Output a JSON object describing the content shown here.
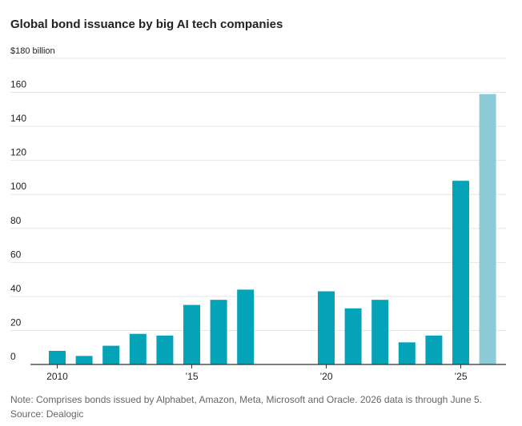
{
  "title": "Global bond issuance by big AI tech companies",
  "note": "Note: Comprises bonds issued by Alphabet, Amazon, Meta, Microsoft and Oracle. 2026 data is through June 5.",
  "source": "Source: Dealogic",
  "colors": {
    "bar": "#05a3b8",
    "bar_partial": "#8ccad8",
    "grid": "#e6e6e6",
    "axis": "#333333",
    "text": "#222222",
    "note_text": "#666666"
  },
  "chart_data": {
    "type": "bar",
    "title": "Global bond issuance by big AI tech companies",
    "ylabel": "$180 billion",
    "xlabel": "",
    "ylim": [
      0,
      180
    ],
    "yticks": [
      {
        "value": 0,
        "label": "0"
      },
      {
        "value": 20,
        "label": "20"
      },
      {
        "value": 40,
        "label": "40"
      },
      {
        "value": 60,
        "label": "60"
      },
      {
        "value": 80,
        "label": "80"
      },
      {
        "value": 100,
        "label": "100"
      },
      {
        "value": 120,
        "label": "120"
      },
      {
        "value": 140,
        "label": "140"
      },
      {
        "value": 160,
        "label": "160"
      },
      {
        "value": 180,
        "label": "$180 billion"
      }
    ],
    "xticks": [
      {
        "value": 2010,
        "label": "2010"
      },
      {
        "value": 2015,
        "label": "’15"
      },
      {
        "value": 2020,
        "label": "’20"
      },
      {
        "value": 2025,
        "label": "’25"
      }
    ],
    "grid": true,
    "categories": [
      2010,
      2011,
      2012,
      2013,
      2014,
      2015,
      2016,
      2017,
      2018,
      2019,
      2020,
      2021,
      2022,
      2023,
      2024,
      2025,
      2026
    ],
    "values": [
      8,
      5,
      11,
      18,
      17,
      35,
      38,
      44,
      0,
      0,
      43,
      33,
      38,
      13,
      17,
      108,
      159
    ],
    "partial_period": [
      false,
      false,
      false,
      false,
      false,
      false,
      false,
      false,
      false,
      false,
      false,
      false,
      false,
      false,
      false,
      false,
      true
    ]
  }
}
